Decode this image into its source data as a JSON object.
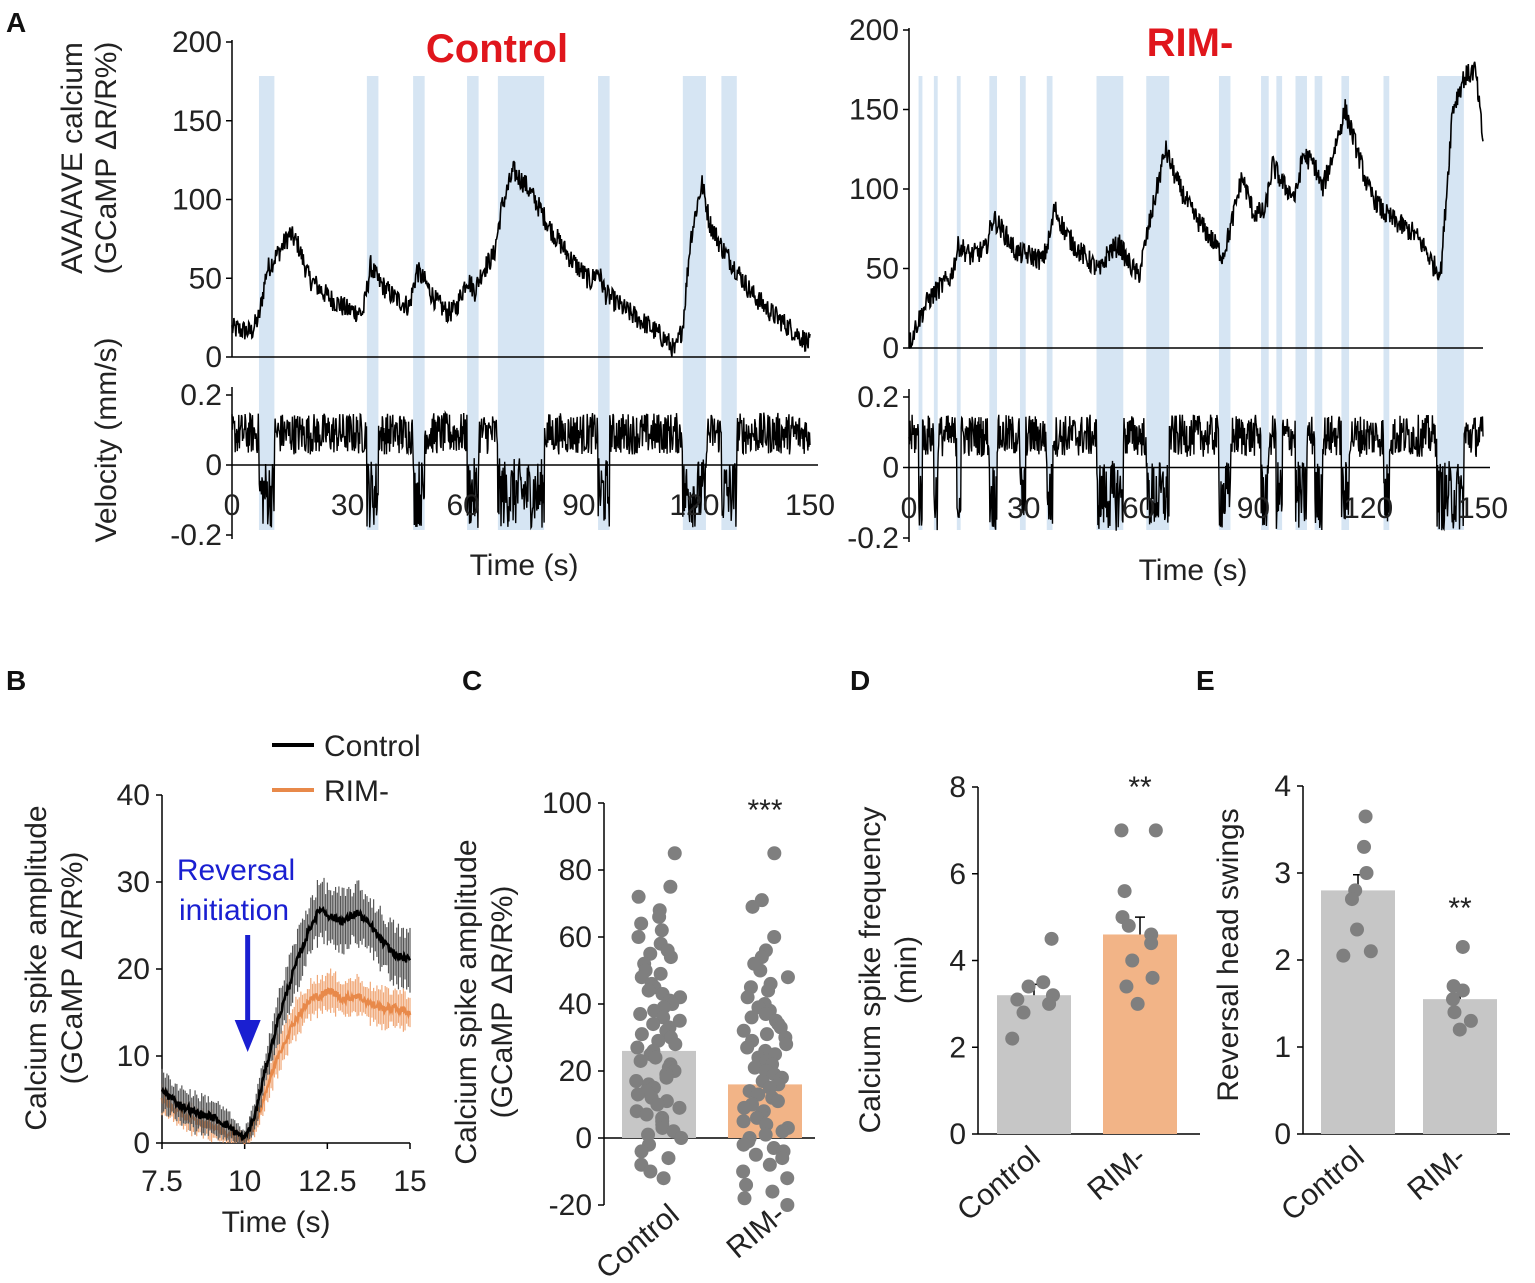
{
  "colors": {
    "title_red": "#e0161c",
    "shade_blue": "#d6e5f3",
    "trace_black": "#000000",
    "rim_orange": "#e8894a",
    "bar_grey": "#c6c6c6",
    "bar_orange": "#f2b487",
    "dot_grey": "#7f7f7f",
    "arrow_blue": "#1a1fd1",
    "annotation_blue": "#1a1fd1"
  },
  "panels": {
    "A": "A",
    "B": "B",
    "C": "C",
    "D": "D",
    "E": "E"
  },
  "chart_data": [
    {
      "id": "A-control-calcium",
      "type": "line",
      "title": "Control",
      "ylabel_lines": [
        "AVA/AVE calcium",
        "(GCaMP ΔR/R%)"
      ],
      "ylim": [
        0,
        200
      ],
      "yticks": [
        "200",
        "150",
        "100",
        "50",
        "0"
      ],
      "xlim": [
        0,
        150
      ],
      "shaded_intervals": [
        [
          7,
          11
        ],
        [
          35,
          38
        ],
        [
          47,
          50
        ],
        [
          61,
          64
        ],
        [
          69,
          81
        ],
        [
          95,
          98
        ],
        [
          117,
          123
        ],
        [
          127,
          131
        ]
      ],
      "key_points": [
        [
          0,
          18
        ],
        [
          5,
          16
        ],
        [
          7,
          25
        ],
        [
          9,
          55
        ],
        [
          13,
          70
        ],
        [
          15,
          78
        ],
        [
          17,
          72
        ],
        [
          20,
          50
        ],
        [
          25,
          38
        ],
        [
          30,
          30
        ],
        [
          34,
          28
        ],
        [
          36,
          58
        ],
        [
          38,
          48
        ],
        [
          42,
          38
        ],
        [
          46,
          32
        ],
        [
          48,
          55
        ],
        [
          50,
          48
        ],
        [
          53,
          35
        ],
        [
          56,
          28
        ],
        [
          58,
          30
        ],
        [
          61,
          50
        ],
        [
          63,
          42
        ],
        [
          65,
          55
        ],
        [
          68,
          65
        ],
        [
          70,
          95
        ],
        [
          73,
          118
        ],
        [
          76,
          110
        ],
        [
          79,
          98
        ],
        [
          83,
          80
        ],
        [
          88,
          62
        ],
        [
          93,
          48
        ],
        [
          95,
          55
        ],
        [
          97,
          40
        ],
        [
          102,
          30
        ],
        [
          108,
          20
        ],
        [
          113,
          10
        ],
        [
          115,
          3
        ],
        [
          117,
          20
        ],
        [
          119,
          75
        ],
        [
          121,
          100
        ],
        [
          122,
          110
        ],
        [
          124,
          85
        ],
        [
          127,
          70
        ],
        [
          131,
          55
        ],
        [
          135,
          40
        ],
        [
          140,
          28
        ],
        [
          145,
          18
        ],
        [
          150,
          8
        ]
      ]
    },
    {
      "id": "A-control-velocity",
      "type": "line",
      "ylabel": "Velocity (mm/s)",
      "xlabel": "Time (s)",
      "ylim": [
        -0.2,
        0.2
      ],
      "yticks": [
        "0.2",
        "0",
        "-0.2"
      ],
      "xlim": [
        0,
        150
      ],
      "xticks": [
        "0",
        "30",
        "60",
        "90",
        "120",
        "150"
      ],
      "shaded_intervals": [
        [
          7,
          11
        ],
        [
          35,
          38
        ],
        [
          47,
          50
        ],
        [
          61,
          64
        ],
        [
          69,
          81
        ],
        [
          95,
          98
        ],
        [
          117,
          123
        ],
        [
          127,
          131
        ]
      ]
    },
    {
      "id": "A-rim-calcium",
      "type": "line",
      "title": "RIM-",
      "ylim": [
        0,
        200
      ],
      "yticks": [
        "200",
        "150",
        "100",
        "50",
        "0"
      ],
      "xlim": [
        0,
        150
      ],
      "shaded_intervals": [
        [
          2.5,
          3.5
        ],
        [
          6.5,
          7.5
        ],
        [
          12.5,
          13.5
        ],
        [
          21,
          23
        ],
        [
          29,
          30.5
        ],
        [
          36,
          37.5
        ],
        [
          49,
          56
        ],
        [
          62,
          68
        ],
        [
          81,
          84
        ],
        [
          92,
          94
        ],
        [
          96,
          97.5
        ],
        [
          101,
          104
        ],
        [
          106,
          108
        ],
        [
          113,
          115
        ],
        [
          124,
          125.5
        ],
        [
          138,
          145
        ]
      ],
      "key_points": [
        [
          0,
          2
        ],
        [
          2,
          15
        ],
        [
          5,
          30
        ],
        [
          8,
          38
        ],
        [
          11,
          45
        ],
        [
          13,
          65
        ],
        [
          16,
          58
        ],
        [
          20,
          62
        ],
        [
          22,
          82
        ],
        [
          25,
          72
        ],
        [
          28,
          60
        ],
        [
          32,
          58
        ],
        [
          35,
          55
        ],
        [
          37,
          72
        ],
        [
          38,
          88
        ],
        [
          41,
          72
        ],
        [
          44,
          62
        ],
        [
          47,
          55
        ],
        [
          49,
          50
        ],
        [
          50,
          48
        ],
        [
          52,
          60
        ],
        [
          55,
          65
        ],
        [
          57,
          55
        ],
        [
          60,
          45
        ],
        [
          63,
          80
        ],
        [
          67,
          125
        ],
        [
          70,
          105
        ],
        [
          74,
          85
        ],
        [
          78,
          72
        ],
        [
          82,
          58
        ],
        [
          84,
          75
        ],
        [
          87,
          108
        ],
        [
          90,
          85
        ],
        [
          93,
          85
        ],
        [
          95,
          115
        ],
        [
          98,
          102
        ],
        [
          101,
          95
        ],
        [
          103,
          122
        ],
        [
          106,
          115
        ],
        [
          108,
          100
        ],
        [
          110,
          115
        ],
        [
          114,
          150
        ],
        [
          117,
          125
        ],
        [
          120,
          100
        ],
        [
          124,
          85
        ],
        [
          128,
          78
        ],
        [
          132,
          72
        ],
        [
          135,
          62
        ],
        [
          137,
          52
        ],
        [
          139,
          48
        ],
        [
          141,
          115
        ],
        [
          142,
          150
        ],
        [
          145,
          170
        ],
        [
          148,
          175
        ],
        [
          150,
          130
        ]
      ]
    },
    {
      "id": "A-rim-velocity",
      "type": "line",
      "xlabel": "Time (s)",
      "ylim": [
        -0.2,
        0.2
      ],
      "yticks": [
        "0.2",
        "0",
        "-0.2"
      ],
      "xlim": [
        0,
        150
      ],
      "xticks": [
        "0",
        "30",
        "60",
        "90",
        "120",
        "150"
      ],
      "shaded_intervals": [
        [
          2.5,
          3.5
        ],
        [
          6.5,
          7.5
        ],
        [
          12.5,
          13.5
        ],
        [
          21,
          23
        ],
        [
          29,
          30.5
        ],
        [
          36,
          37.5
        ],
        [
          49,
          56
        ],
        [
          62,
          68
        ],
        [
          81,
          84
        ],
        [
          92,
          94
        ],
        [
          96,
          97.5
        ],
        [
          101,
          104
        ],
        [
          106,
          108
        ],
        [
          113,
          115
        ],
        [
          124,
          125.5
        ],
        [
          138,
          145
        ]
      ]
    },
    {
      "id": "B",
      "type": "line",
      "ylabel_lines": [
        "Calcium spike amplitude",
        "(GCaMP ΔR/R%)"
      ],
      "xlabel": "Time (s)",
      "xlim": [
        7.5,
        15
      ],
      "ylim": [
        0,
        40
      ],
      "xticks": [
        "7.5",
        "10",
        "12.5",
        "15"
      ],
      "yticks": [
        "40",
        "30",
        "20",
        "10",
        "0"
      ],
      "legend": [
        "Control",
        "RIM-"
      ],
      "annotation_lines": [
        "Reversal",
        "initiation"
      ],
      "arrow_x": 10,
      "series": [
        {
          "name": "Control",
          "x": [
            7.5,
            8,
            8.5,
            9,
            9.5,
            9.8,
            10,
            10.3,
            10.6,
            11,
            11.5,
            12,
            12.3,
            12.6,
            13,
            13.4,
            13.8,
            14.2,
            14.6,
            15
          ],
          "y": [
            6,
            4.5,
            3.5,
            3,
            2,
            1,
            0.5,
            3,
            8,
            14,
            20,
            25,
            27,
            26,
            25.5,
            26.5,
            25,
            23,
            21.5,
            21
          ],
          "err": [
            2,
            2,
            2,
            2,
            1.5,
            1,
            1,
            1.5,
            2,
            2.5,
            3,
            3,
            3,
            3,
            3,
            3,
            3,
            3,
            3,
            3
          ]
        },
        {
          "name": "RIM-",
          "x": [
            7.5,
            8,
            8.5,
            9,
            9.5,
            9.8,
            10,
            10.3,
            10.6,
            11,
            11.5,
            12,
            12.3,
            12.6,
            13,
            13.4,
            13.8,
            14.2,
            14.6,
            15
          ],
          "y": [
            5,
            3.5,
            2.5,
            2,
            1,
            0.5,
            0.3,
            2,
            5.5,
            10,
            14,
            16.5,
            17,
            17.5,
            16.5,
            17,
            16,
            15.5,
            15.5,
            15
          ],
          "err": [
            1.5,
            1.5,
            1.5,
            1.5,
            1.2,
            1,
            0.8,
            1.2,
            1.5,
            2,
            2,
            2,
            2,
            2,
            2,
            2,
            2,
            2,
            2,
            2
          ]
        }
      ]
    },
    {
      "id": "C",
      "type": "bar",
      "ylabel_lines": [
        "Calcium spike amplitude",
        "(GCaMP ΔR/R%)"
      ],
      "categories": [
        "Control",
        "RIM-"
      ],
      "values": [
        26,
        16
      ],
      "ylim": [
        -20,
        100
      ],
      "yticks": [
        "100",
        "80",
        "60",
        "40",
        "20",
        "0",
        "-20"
      ],
      "significance": [
        "",
        "***"
      ],
      "points": [
        [
          85,
          75,
          72,
          68,
          66,
          64,
          62,
          60,
          58,
          56,
          55,
          54,
          52,
          50,
          49,
          48,
          46,
          45,
          44,
          43,
          42,
          41,
          40,
          39,
          38,
          37,
          36,
          35,
          34,
          33,
          32,
          31,
          30,
          29,
          28,
          27,
          26,
          25,
          24,
          23,
          22,
          21,
          20,
          19,
          18,
          17,
          16,
          15,
          14,
          13,
          12,
          11,
          10,
          9,
          8,
          7,
          6,
          5,
          4,
          3,
          2,
          1,
          0,
          -2,
          -4,
          -6,
          -8,
          -10,
          -12
        ],
        [
          85,
          71,
          69,
          60,
          56,
          54,
          52,
          50,
          48,
          46,
          45,
          44,
          42,
          40,
          39,
          38,
          37,
          36,
          35,
          34,
          33,
          32,
          31,
          30,
          29,
          28,
          27,
          26,
          25,
          24,
          23,
          22,
          21,
          20,
          19,
          18,
          17,
          16,
          15,
          14,
          13,
          12,
          11,
          10,
          9,
          8,
          7,
          6,
          5,
          4,
          3,
          2,
          1,
          0,
          -1,
          -2,
          -3,
          -4,
          -5,
          -6,
          -8,
          -10,
          -12,
          -14,
          -16,
          -18,
          -20
        ]
      ]
    },
    {
      "id": "D",
      "type": "bar",
      "ylabel_lines": [
        "Calcium spike frequency",
        "(min)"
      ],
      "categories": [
        "Control",
        "RIM-"
      ],
      "values": [
        3.2,
        4.6
      ],
      "ylim": [
        0,
        8
      ],
      "yticks": [
        "8",
        "6",
        "4",
        "2",
        "0"
      ],
      "significance": [
        "",
        "**"
      ],
      "points": [
        [
          4.5,
          3.5,
          3.4,
          3.2,
          3.1,
          3.0,
          2.8,
          2.2
        ],
        [
          7.0,
          7.0,
          5.6,
          5.0,
          4.8,
          4.6,
          4.4,
          4.0,
          3.6,
          3.4,
          3.0
        ]
      ]
    },
    {
      "id": "E",
      "type": "bar",
      "ylabel": "Reversal head swings",
      "categories": [
        "Control",
        "RIM-"
      ],
      "values": [
        2.8,
        1.55
      ],
      "ylim": [
        0,
        4
      ],
      "yticks": [
        "4",
        "3",
        "2",
        "1",
        "0"
      ],
      "significance": [
        "",
        "**"
      ],
      "points": [
        [
          3.65,
          3.3,
          3.0,
          2.8,
          2.7,
          2.35,
          2.1,
          2.05
        ],
        [
          2.15,
          1.7,
          1.65,
          1.55,
          1.4,
          1.3,
          1.2
        ]
      ]
    }
  ]
}
